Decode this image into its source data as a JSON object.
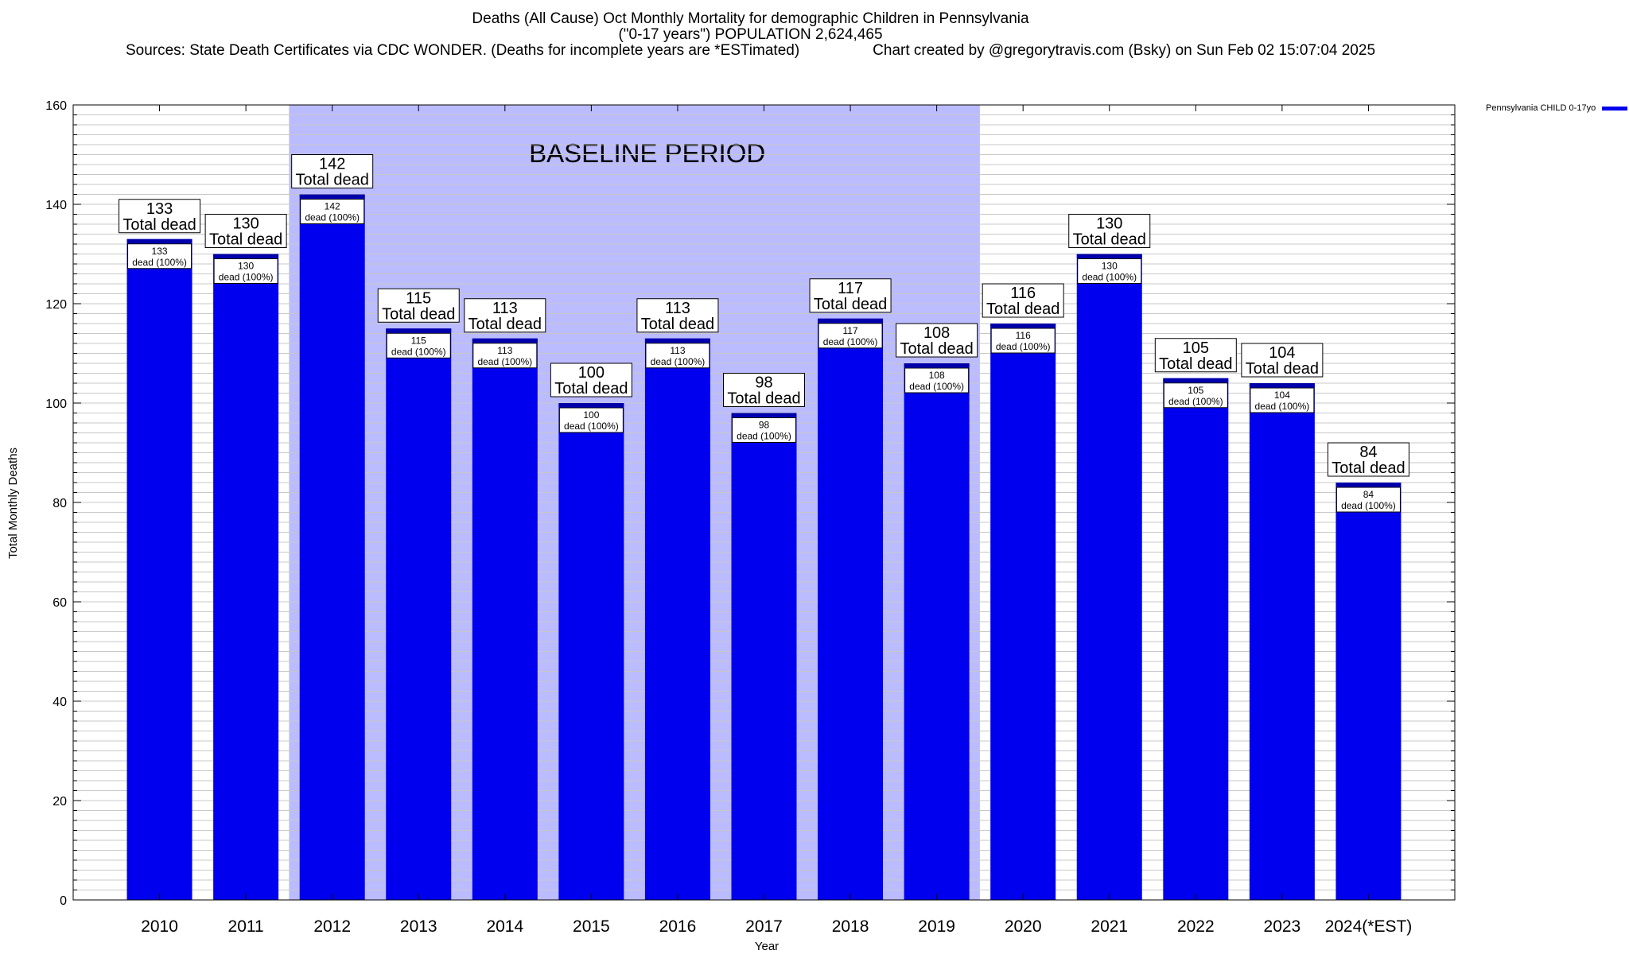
{
  "header": {
    "title": "Deaths (All Cause) Oct Monthly Mortality for demographic Children in Pennsylvania",
    "subtitle": "(\"0-17 years\") POPULATION 2,624,465",
    "sources": "Sources: State Death Certificates via CDC WONDER. (Deaths for incomplete years are *ESTimated)",
    "credit": "Chart created by @gregorytravis.com (Bsky) on Sun Feb 02 15:07:04 2025"
  },
  "colors": {
    "bar": "#0000ee",
    "bar_top": "#0000aa",
    "baseline_band": "#bbbbff",
    "grid": "#c8c8c8",
    "frame": "#000000"
  },
  "chart_data": {
    "type": "bar",
    "xlabel": "Year",
    "ylabel": "Total Monthly Deaths",
    "ylim": [
      0,
      160
    ],
    "yticks": [
      0,
      20,
      40,
      60,
      80,
      100,
      120,
      140,
      160
    ],
    "categories": [
      "2010",
      "2011",
      "2012",
      "2013",
      "2014",
      "2015",
      "2016",
      "2017",
      "2018",
      "2019",
      "2020",
      "2021",
      "2022",
      "2023",
      "2024(*EST)"
    ],
    "series": [
      {
        "name": "Pennsylvania CHILD 0-17yo",
        "values": [
          133,
          130,
          142,
          115,
          113,
          100,
          113,
          98,
          117,
          108,
          116,
          130,
          105,
          104,
          84
        ]
      }
    ],
    "top_label_suffix": "Total dead",
    "inner_label_suffix": "dead (100%)",
    "annotation": {
      "text": "BASELINE PERIOD",
      "from_category": "2012",
      "to_category": "2019"
    },
    "grid": true,
    "legend_position": "outside-top-right"
  }
}
